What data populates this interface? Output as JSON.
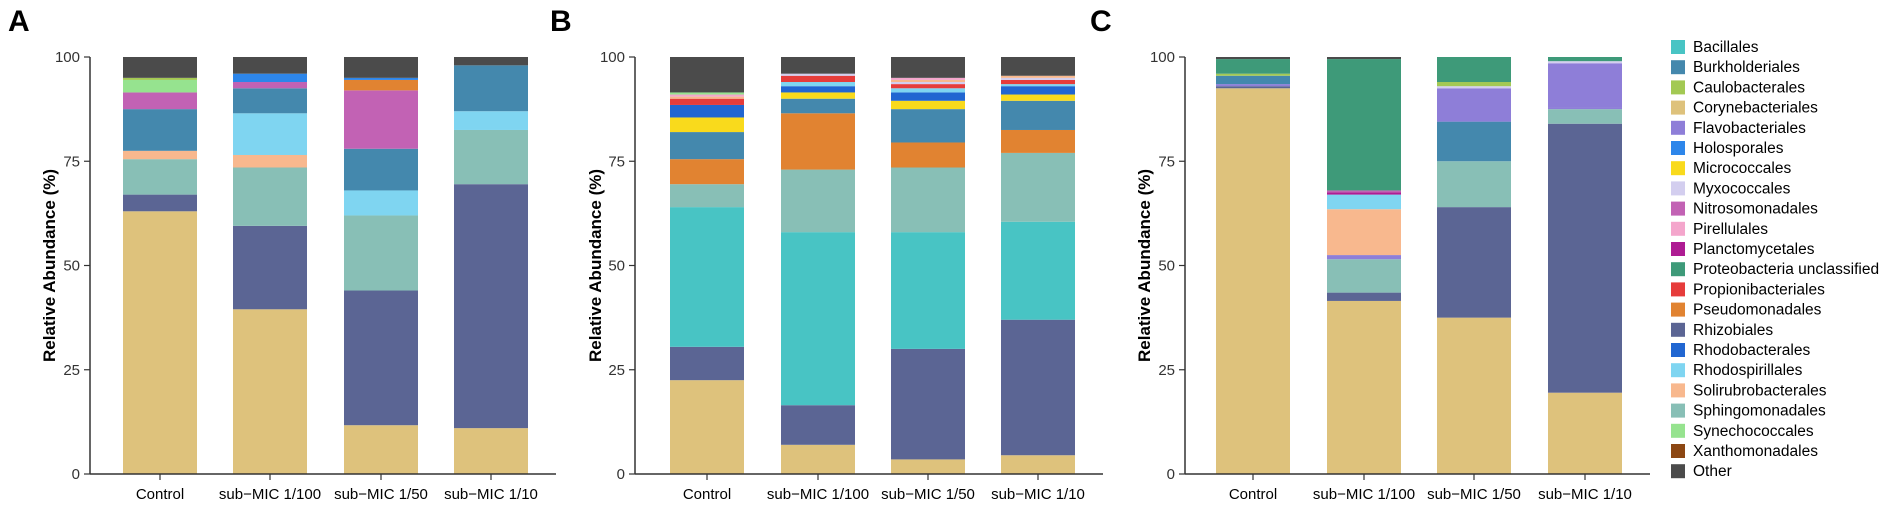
{
  "legend": {
    "items": [
      {
        "name": "Bacillales",
        "color": "#48C4C4"
      },
      {
        "name": "Burkholderiales",
        "color": "#4488AD"
      },
      {
        "name": "Caulobacterales",
        "color": "#A3C953"
      },
      {
        "name": "Corynebacteriales",
        "color": "#DEC27C"
      },
      {
        "name": "Flavobacteriales",
        "color": "#8E7ED8"
      },
      {
        "name": "Holosporales",
        "color": "#2D86EA"
      },
      {
        "name": "Micrococcales",
        "color": "#F9DA1C"
      },
      {
        "name": "Myxococcales",
        "color": "#D3CEEF"
      },
      {
        "name": "Nitrosomonadales",
        "color": "#C262B4"
      },
      {
        "name": "Pirellulales",
        "color": "#F4A6CC"
      },
      {
        "name": "Planctomycetales",
        "color": "#AE1C93"
      },
      {
        "name": "Proteobacteria unclassified",
        "color": "#3E9A79"
      },
      {
        "name": "Propionibacteriales",
        "color": "#E63C3B"
      },
      {
        "name": "Pseudomonadales",
        "color": "#E18331"
      },
      {
        "name": "Rhizobiales",
        "color": "#5B6594"
      },
      {
        "name": "Rhodobacterales",
        "color": "#2166D1"
      },
      {
        "name": "Rhodospirillales",
        "color": "#7FD5F1"
      },
      {
        "name": "Solirubrobacterales",
        "color": "#F8B88E"
      },
      {
        "name": "Sphingomonadales",
        "color": "#88BFB6"
      },
      {
        "name": "Synechococcales",
        "color": "#96E38F"
      },
      {
        "name": "Xanthomonadales",
        "color": "#8C4713"
      },
      {
        "name": "Other",
        "color": "#4B4B4B"
      }
    ]
  },
  "chart_data": [
    {
      "type": "bar",
      "stacked": true,
      "panel": "A",
      "ylabel": "Relative Abundance (%)",
      "ylim": [
        0,
        100
      ],
      "yticks": [
        "0",
        "25",
        "50",
        "75",
        "100"
      ],
      "categories": [
        "Control",
        "sub−MIC 1/100",
        "sub−MIC 1/50",
        "sub−MIC 1/10"
      ],
      "series": [
        {
          "name": "Corynebacteriales",
          "values": [
            63,
            39.5,
            11.7,
            11
          ]
        },
        {
          "name": "Rhizobiales",
          "values": [
            4,
            20,
            32.3,
            58.5
          ]
        },
        {
          "name": "Sphingomonadales",
          "values": [
            8.5,
            14,
            18,
            13
          ]
        },
        {
          "name": "Solirubrobacterales",
          "values": [
            2,
            3,
            0,
            0
          ]
        },
        {
          "name": "Rhodospirillales",
          "values": [
            0,
            10,
            6,
            4.5
          ]
        },
        {
          "name": "Burkholderiales",
          "values": [
            10,
            6,
            10,
            11
          ]
        },
        {
          "name": "Nitrosomonadales",
          "values": [
            4,
            1.5,
            14,
            0
          ]
        },
        {
          "name": "Synechococcales",
          "values": [
            3,
            0,
            0,
            0
          ]
        },
        {
          "name": "Caulobacterales",
          "values": [
            0.5,
            0,
            0,
            0
          ]
        },
        {
          "name": "Pseudomonadales",
          "values": [
            0,
            0,
            2.5,
            0
          ]
        },
        {
          "name": "Holosporales",
          "values": [
            0,
            2,
            0.5,
            0
          ]
        },
        {
          "name": "Other",
          "values": [
            5,
            4,
            5,
            2
          ]
        }
      ]
    },
    {
      "type": "bar",
      "stacked": true,
      "panel": "B",
      "ylabel": "Relative Abundance (%)",
      "ylim": [
        0,
        100
      ],
      "yticks": [
        "0",
        "25",
        "50",
        "75",
        "100"
      ],
      "categories": [
        "Control",
        "sub−MIC 1/100",
        "sub−MIC 1/50",
        "sub−MIC 1/10"
      ],
      "series": [
        {
          "name": "Corynebacteriales",
          "values": [
            22.5,
            7,
            3.5,
            4.5
          ]
        },
        {
          "name": "Rhizobiales",
          "values": [
            8,
            9.5,
            26.5,
            32.5
          ]
        },
        {
          "name": "Bacillales",
          "values": [
            33.5,
            41.5,
            28,
            23.5
          ]
        },
        {
          "name": "Sphingomonadales",
          "values": [
            5.5,
            15,
            15.5,
            16.5
          ]
        },
        {
          "name": "Pseudomonadales",
          "values": [
            6,
            13.5,
            6,
            5.5
          ]
        },
        {
          "name": "Burkholderiales",
          "values": [
            6.5,
            3.5,
            8,
            7
          ]
        },
        {
          "name": "Micrococcales",
          "values": [
            3.5,
            1.5,
            2,
            1.5
          ]
        },
        {
          "name": "Rhodobacterales",
          "values": [
            3,
            1.5,
            2,
            2
          ]
        },
        {
          "name": "Rhodospirillales",
          "values": [
            0,
            1,
            1,
            0.5
          ]
        },
        {
          "name": "Propionibacteriales",
          "values": [
            1.5,
            1.5,
            1,
            1
          ]
        },
        {
          "name": "Myxococcales",
          "values": [
            0,
            0.5,
            0.5,
            0.5
          ]
        },
        {
          "name": "Solirubrobacterales",
          "values": [
            0.5,
            0,
            0.5,
            0.5
          ]
        },
        {
          "name": "Pirellulales",
          "values": [
            0.5,
            0,
            0.5,
            0
          ]
        },
        {
          "name": "Synechococcales",
          "values": [
            0.5,
            0,
            0,
            0
          ]
        },
        {
          "name": "Other",
          "values": [
            8.5,
            4,
            5,
            4.5
          ]
        }
      ]
    },
    {
      "type": "bar",
      "stacked": true,
      "panel": "C",
      "ylabel": "Relative Abundance (%)",
      "ylim": [
        0,
        100
      ],
      "yticks": [
        "0",
        "25",
        "50",
        "75",
        "100"
      ],
      "categories": [
        "Control",
        "sub−MIC 1/100",
        "sub−MIC 1/50",
        "sub−MIC 1/10"
      ],
      "series": [
        {
          "name": "Corynebacteriales",
          "values": [
            92.5,
            41.5,
            37.5,
            19.5
          ]
        },
        {
          "name": "Rhizobiales",
          "values": [
            0.5,
            2,
            26.5,
            64.5
          ]
        },
        {
          "name": "Sphingomonadales",
          "values": [
            0,
            8,
            11,
            3.5
          ]
        },
        {
          "name": "Flavobacteriales",
          "values": [
            0.5,
            1,
            0,
            0.5
          ]
        },
        {
          "name": "Solirubrobacterales",
          "values": [
            0,
            11,
            0,
            0
          ]
        },
        {
          "name": "Rhodospirillales",
          "values": [
            0,
            3.5,
            0,
            0
          ]
        },
        {
          "name": "Burkholderiales",
          "values": [
            2,
            0,
            9.5,
            0
          ]
        },
        {
          "name": "Planctomycetales",
          "values": [
            0,
            0.5,
            0,
            0
          ]
        },
        {
          "name": "Nitrosomonadales",
          "values": [
            0,
            0.5,
            0,
            0
          ]
        },
        {
          "name": "Flavobacteriales",
          "values": [
            0,
            0,
            8,
            10.5
          ]
        },
        {
          "name": "Myxococcales",
          "values": [
            0,
            0,
            0.5,
            0.5
          ]
        },
        {
          "name": "Caulobacterales",
          "values": [
            0.5,
            0,
            1,
            0
          ]
        },
        {
          "name": "Proteobacteria unclassified",
          "values": [
            3.5,
            31.5,
            6,
            1
          ]
        },
        {
          "name": "Other",
          "values": [
            0.5,
            0.5,
            0,
            0
          ]
        }
      ]
    }
  ],
  "panels": [
    {
      "letter": "A"
    },
    {
      "letter": "B"
    },
    {
      "letter": "C"
    }
  ]
}
